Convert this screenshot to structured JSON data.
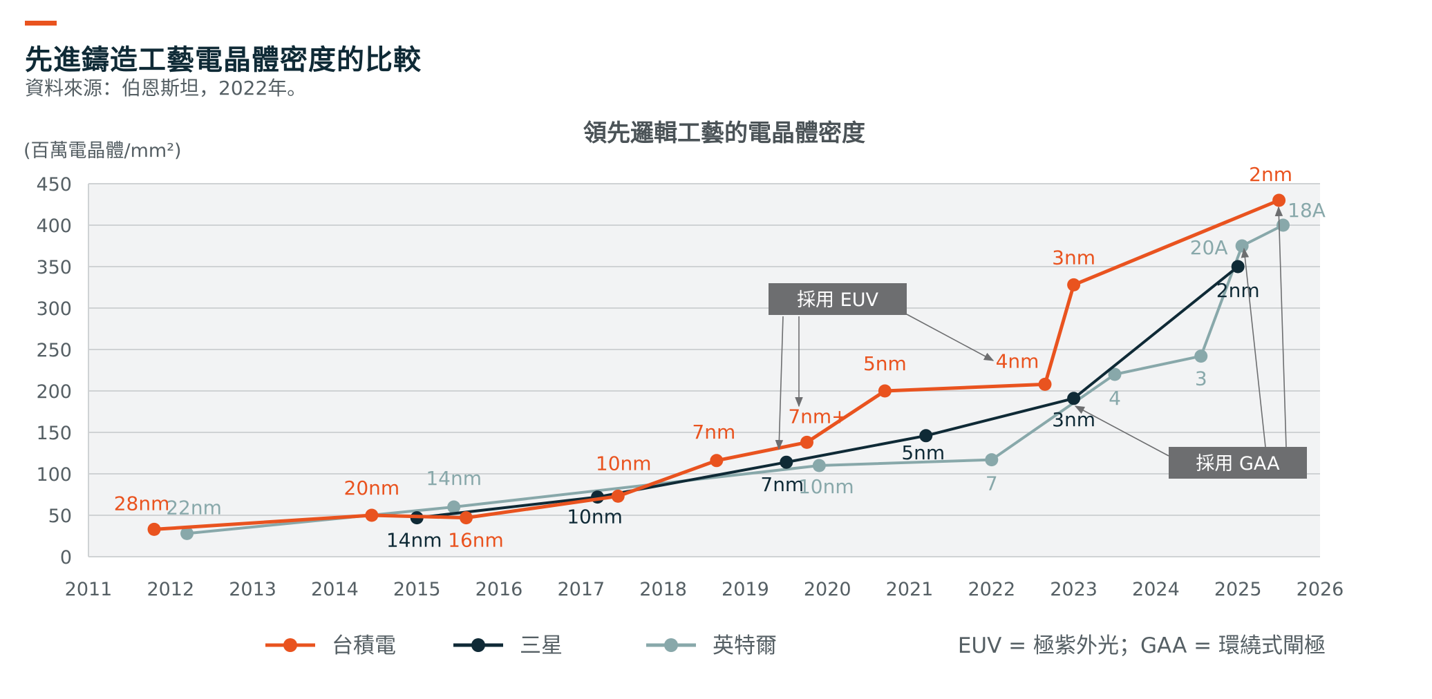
{
  "header": {
    "title": "先進鑄造工藝電晶體密度的比較",
    "source": "資料來源：伯恩斯坦，2022年。"
  },
  "colors": {
    "tsmc": "#e9531f",
    "samsung": "#0f2a36",
    "intel": "#88a8aa",
    "plot_bg": "#f2f3f4",
    "grid": "#cfd2d4",
    "text": "#555f64",
    "callout_bg": "#6d6e70"
  },
  "chart_data": {
    "type": "line",
    "title": "領先邏輯工藝的電晶體密度",
    "ylabel": "(百萬電晶體/mm²)",
    "xlabel": "",
    "xlim": [
      2011,
      2026
    ],
    "ylim": [
      0,
      450
    ],
    "x_ticks": [
      "2011",
      "2012",
      "2013",
      "2014",
      "2015",
      "2016",
      "2017",
      "2018",
      "2019",
      "2020",
      "2021",
      "2022",
      "2023",
      "2024",
      "2025",
      "2026"
    ],
    "y_ticks": [
      "0",
      "50",
      "100",
      "150",
      "200",
      "250",
      "300",
      "350",
      "400",
      "450"
    ],
    "grid": true,
    "series": [
      {
        "name": "台積電",
        "color_key": "tsmc",
        "points": [
          {
            "x": 2011.8,
            "y": 33,
            "label": "28nm"
          },
          {
            "x": 2014.45,
            "y": 50,
            "label": "20nm"
          },
          {
            "x": 2015.6,
            "y": 47,
            "label": "16nm"
          },
          {
            "x": 2017.45,
            "y": 73,
            "label": "10nm"
          },
          {
            "x": 2018.65,
            "y": 116,
            "label": "7nm"
          },
          {
            "x": 2019.75,
            "y": 138,
            "label": "7nm+"
          },
          {
            "x": 2020.7,
            "y": 200,
            "label": "5nm"
          },
          {
            "x": 2022.65,
            "y": 208,
            "label": "4nm"
          },
          {
            "x": 2023.0,
            "y": 328,
            "label": "3nm"
          },
          {
            "x": 2025.5,
            "y": 430,
            "label": "2nm"
          }
        ]
      },
      {
        "name": "三星",
        "color_key": "samsung",
        "points": [
          {
            "x": 2015.0,
            "y": 47,
            "label": "14nm"
          },
          {
            "x": 2017.2,
            "y": 72,
            "label": "10nm"
          },
          {
            "x": 2019.5,
            "y": 114,
            "label": "7nm"
          },
          {
            "x": 2021.2,
            "y": 146,
            "label": "5nm"
          },
          {
            "x": 2023.0,
            "y": 191,
            "label": "3nm"
          },
          {
            "x": 2025.0,
            "y": 350,
            "label": "2nm"
          }
        ]
      },
      {
        "name": "英特爾",
        "color_key": "intel",
        "points": [
          {
            "x": 2012.2,
            "y": 28,
            "label": "22nm"
          },
          {
            "x": 2015.45,
            "y": 60,
            "label": "14nm"
          },
          {
            "x": 2019.9,
            "y": 110,
            "label": "10nm"
          },
          {
            "x": 2022.0,
            "y": 117,
            "label": "7"
          },
          {
            "x": 2023.5,
            "y": 220,
            "label": "4"
          },
          {
            "x": 2024.55,
            "y": 242,
            "label": "3"
          },
          {
            "x": 2025.05,
            "y": 375,
            "label": "20A"
          },
          {
            "x": 2025.55,
            "y": 400,
            "label": "18A"
          }
        ]
      }
    ],
    "callouts": [
      {
        "text": "採用 EUV",
        "targets": [
          "samsung:7nm",
          "tsmc:7nm+",
          "tsmc:4nm"
        ]
      },
      {
        "text": "採用 GAA",
        "targets": [
          "samsung:3nm",
          "intel:20A",
          "intel:18A"
        ]
      }
    ],
    "legend": [
      "台積電",
      "三星",
      "英特爾"
    ],
    "legend_position": "bottom",
    "footnote": "EUV = 極紫外光；GAA = 環繞式閘極"
  }
}
